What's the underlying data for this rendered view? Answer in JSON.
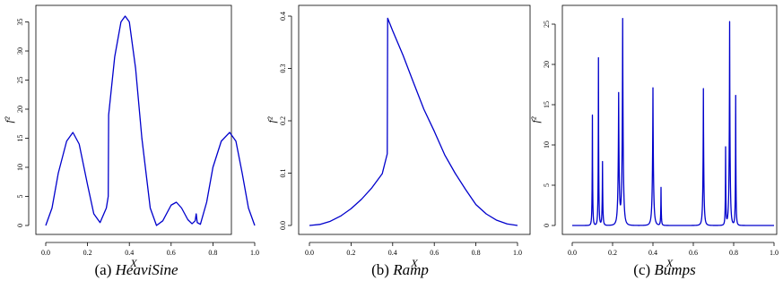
{
  "chart_data": [
    {
      "type": "line",
      "panel": "(a)",
      "caption_prefix": "(a)",
      "caption_name": "HeaviSine",
      "xlabel": "X",
      "ylabel": "f²",
      "xlim": [
        0,
        1
      ],
      "ylim": [
        0,
        36
      ],
      "xticks": [
        "0.0",
        "0.2",
        "0.4",
        "0.6",
        "0.8",
        "1.0"
      ],
      "yticks": [
        "0",
        "5",
        "10",
        "15",
        "20",
        "25",
        "30",
        "35"
      ],
      "xtick_values": [
        0,
        0.2,
        0.4,
        0.6,
        0.8,
        1.0
      ],
      "ytick_values": [
        0,
        5,
        10,
        15,
        20,
        25,
        30,
        35
      ],
      "x": [
        0.0,
        0.03,
        0.06,
        0.1,
        0.13,
        0.16,
        0.2,
        0.23,
        0.26,
        0.29,
        0.299,
        0.301,
        0.33,
        0.36,
        0.38,
        0.4,
        0.43,
        0.46,
        0.5,
        0.53,
        0.56,
        0.6,
        0.625,
        0.65,
        0.68,
        0.7,
        0.715,
        0.72,
        0.725,
        0.74,
        0.77,
        0.8,
        0.84,
        0.88,
        0.91,
        0.94,
        0.97,
        1.0
      ],
      "values": [
        0,
        3,
        9,
        14.5,
        16,
        14,
        7,
        2,
        0.5,
        3,
        5,
        19,
        29,
        35,
        36,
        35,
        27,
        15,
        3,
        0,
        0.8,
        3.5,
        4,
        3,
        1,
        0.3,
        0.8,
        2,
        0.5,
        0.2,
        4,
        10,
        14.5,
        16,
        14.5,
        9,
        3,
        0
      ]
    },
    {
      "type": "line",
      "panel": "(b)",
      "caption_prefix": "(b)",
      "caption_name": "Ramp",
      "xlabel": "X",
      "ylabel": "f²",
      "xlim": [
        0,
        1
      ],
      "ylim": [
        0,
        0.4
      ],
      "xticks": [
        "0.0",
        "0.2",
        "0.4",
        "0.6",
        "0.8",
        "1.0"
      ],
      "yticks": [
        "0.0",
        "0.1",
        "0.2",
        "0.3",
        "0.4"
      ],
      "xtick_values": [
        0,
        0.2,
        0.4,
        0.6,
        0.8,
        1.0
      ],
      "ytick_values": [
        0,
        0.1,
        0.2,
        0.3,
        0.4
      ],
      "x": [
        0.0,
        0.05,
        0.1,
        0.15,
        0.2,
        0.25,
        0.3,
        0.35,
        0.374,
        0.376,
        0.4,
        0.45,
        0.5,
        0.55,
        0.6,
        0.65,
        0.7,
        0.75,
        0.8,
        0.85,
        0.9,
        0.95,
        1.0
      ],
      "values": [
        0.0,
        0.002,
        0.008,
        0.018,
        0.032,
        0.05,
        0.072,
        0.099,
        0.137,
        0.396,
        0.372,
        0.325,
        0.273,
        0.222,
        0.18,
        0.135,
        0.1,
        0.069,
        0.04,
        0.022,
        0.01,
        0.003,
        0.0
      ]
    },
    {
      "type": "line",
      "panel": "(c)",
      "caption_prefix": "(c)",
      "caption_name": "Bumps",
      "xlabel": "X",
      "ylabel": "f²",
      "xlim": [
        0,
        1
      ],
      "ylim": [
        0,
        26
      ],
      "xticks": [
        "0.0",
        "0.2",
        "0.4",
        "0.6",
        "0.8",
        "1.0"
      ],
      "yticks": [
        "0",
        "5",
        "10",
        "15",
        "20",
        "25"
      ],
      "xtick_values": [
        0,
        0.2,
        0.4,
        0.6,
        0.8,
        1.0
      ],
      "ytick_values": [
        0,
        5,
        10,
        15,
        20,
        25
      ],
      "peaks": [
        {
          "x": 0.1,
          "height": 13.7,
          "width": 0.005
        },
        {
          "x": 0.13,
          "height": 20.8,
          "width": 0.005
        },
        {
          "x": 0.15,
          "height": 7.9,
          "width": 0.006
        },
        {
          "x": 0.23,
          "height": 16.2,
          "width": 0.01
        },
        {
          "x": 0.25,
          "height": 25.5,
          "width": 0.01
        },
        {
          "x": 0.4,
          "height": 17.1,
          "width": 0.01
        },
        {
          "x": 0.44,
          "height": 4.7,
          "width": 0.005
        },
        {
          "x": 0.65,
          "height": 17.0,
          "width": 0.008
        },
        {
          "x": 0.76,
          "height": 9.6,
          "width": 0.005
        },
        {
          "x": 0.78,
          "height": 25.3,
          "width": 0.008
        },
        {
          "x": 0.81,
          "height": 16.1,
          "width": 0.005
        }
      ]
    }
  ]
}
